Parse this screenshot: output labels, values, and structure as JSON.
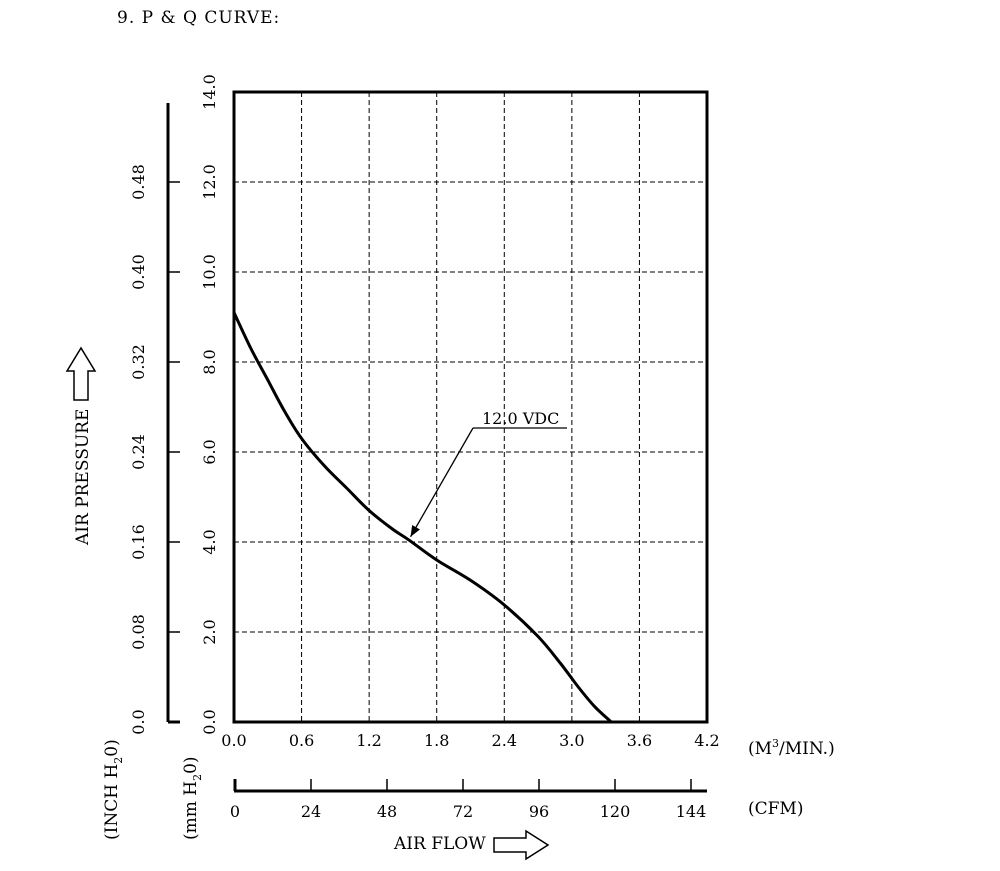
{
  "heading": "9. P & Q CURVE:",
  "chart_data": {
    "type": "line",
    "title": "",
    "x_primary": {
      "unit_label": "(M3/MIN.)",
      "unit_base": "(M",
      "unit_sup": "3",
      "unit_tail": "/MIN.)",
      "range": [
        0,
        4.2
      ],
      "ticks": [
        "0.0",
        "0.6",
        "1.2",
        "1.8",
        "2.4",
        "3.0",
        "3.6",
        "4.2"
      ]
    },
    "x_secondary": {
      "unit_label": "(CFM)",
      "ticks": [
        "0",
        "24",
        "48",
        "72",
        "96",
        "120",
        "144"
      ]
    },
    "xlabel": "AIR FLOW",
    "y_primary": {
      "unit_label": "(mm H20)",
      "unit_base": "(mm H",
      "unit_sub": "2",
      "unit_tail": "0)",
      "range": [
        0,
        14
      ],
      "ticks": [
        "0.0",
        "2.0",
        "4.0",
        "6.0",
        "8.0",
        "10.0",
        "12.0",
        "14.0"
      ]
    },
    "y_secondary": {
      "unit_label": "(INCH H20)",
      "unit_base": "(INCH H",
      "unit_sub": "2",
      "unit_tail": "0)",
      "ticks": [
        "0.0",
        "0.08",
        "0.16",
        "0.24",
        "0.32",
        "0.40",
        "0.48"
      ]
    },
    "ylabel": "AIR PRESSURE",
    "grid": true,
    "series": [
      {
        "name": "12.0 VDC",
        "x": [
          0.0,
          0.15,
          0.3,
          0.45,
          0.6,
          0.8,
          1.0,
          1.2,
          1.4,
          1.55,
          1.8,
          2.1,
          2.4,
          2.7,
          2.9,
          3.05,
          3.2,
          3.35
        ],
        "y": [
          9.1,
          8.3,
          7.6,
          6.9,
          6.3,
          5.7,
          5.2,
          4.7,
          4.3,
          4.05,
          3.6,
          3.15,
          2.6,
          1.9,
          1.3,
          0.8,
          0.35,
          0.0
        ]
      }
    ],
    "annotations": [
      {
        "text": "12.0 VDC",
        "points_to": [
          1.55,
          4.05
        ]
      }
    ]
  }
}
